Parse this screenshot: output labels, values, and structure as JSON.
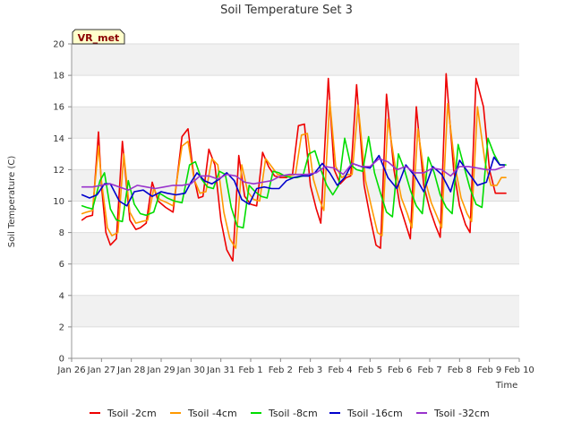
{
  "chart_data": {
    "type": "line",
    "title": "Soil Temperature Set 3",
    "xlabel": "Time",
    "ylabel": "Soil Temperature (C)",
    "badge": "VR_met",
    "ylim": [
      0,
      20
    ],
    "yticks": [
      0,
      2,
      4,
      6,
      8,
      10,
      12,
      14,
      16,
      18,
      20
    ],
    "xlim": [
      0,
      15
    ],
    "xticks": [
      {
        "pos": 0,
        "label": "Jan 26"
      },
      {
        "pos": 1,
        "label": "Jan 27"
      },
      {
        "pos": 2,
        "label": "Jan 28"
      },
      {
        "pos": 3,
        "label": "Jan 29"
      },
      {
        "pos": 4,
        "label": "Jan 30"
      },
      {
        "pos": 5,
        "label": "Jan 31"
      },
      {
        "pos": 6,
        "label": "Feb 1"
      },
      {
        "pos": 7,
        "label": "Feb 2"
      },
      {
        "pos": 8,
        "label": "Feb 3"
      },
      {
        "pos": 9,
        "label": "Feb 4"
      },
      {
        "pos": 10,
        "label": "Feb 5"
      },
      {
        "pos": 11,
        "label": "Feb 6"
      },
      {
        "pos": 12,
        "label": "Feb 7"
      },
      {
        "pos": 13,
        "label": "Feb 8"
      },
      {
        "pos": 14,
        "label": "Feb 9"
      },
      {
        "pos": 15,
        "label": "Feb 10"
      }
    ],
    "grid": "horizontal bands",
    "legend_position": "bottom",
    "series": [
      {
        "name": "Tsoil -2cm",
        "color": "#ee0000",
        "x": [
          0.35,
          0.5,
          0.7,
          0.9,
          1.0,
          1.15,
          1.3,
          1.5,
          1.7,
          1.95,
          2.15,
          2.3,
          2.5,
          2.7,
          2.9,
          3.15,
          3.4,
          3.7,
          3.9,
          4.1,
          4.25,
          4.4,
          4.6,
          4.8,
          5.0,
          5.2,
          5.4,
          5.6,
          5.8,
          6.0,
          6.2,
          6.4,
          6.6,
          6.8,
          7.0,
          7.2,
          7.4,
          7.6,
          7.8,
          8.0,
          8.2,
          8.35,
          8.6,
          8.8,
          9.0,
          9.2,
          9.35,
          9.55,
          9.8,
          10.0,
          10.2,
          10.35,
          10.55,
          10.8,
          11.0,
          11.2,
          11.35,
          11.55,
          11.8,
          12.0,
          12.2,
          12.35,
          12.55,
          12.8,
          13.0,
          13.2,
          13.35,
          13.55,
          13.8,
          14.0,
          14.2,
          14.35,
          14.55
        ],
        "y": [
          8.8,
          9.0,
          9.1,
          14.4,
          11.0,
          8.0,
          7.2,
          7.6,
          13.8,
          8.8,
          8.2,
          8.3,
          8.6,
          11.2,
          10.0,
          9.6,
          9.3,
          14.1,
          14.6,
          11.5,
          10.2,
          10.3,
          13.3,
          12.3,
          8.8,
          6.9,
          6.2,
          12.9,
          10.3,
          9.8,
          9.7,
          13.1,
          12.2,
          11.6,
          11.5,
          11.5,
          11.7,
          14.8,
          14.9,
          11.0,
          9.5,
          8.6,
          17.8,
          12.0,
          11.1,
          11.5,
          11.6,
          17.4,
          11.0,
          9.0,
          7.2,
          7.0,
          16.8,
          12.0,
          9.7,
          8.5,
          7.6,
          16.0,
          11.0,
          9.5,
          8.4,
          7.7,
          18.1,
          12.0,
          9.7,
          8.5,
          8.0,
          17.8,
          16.0,
          12.0,
          10.5,
          10.5,
          10.5
        ]
      },
      {
        "name": "Tsoil -4cm",
        "color": "#ff9900",
        "x": [
          0.35,
          0.5,
          0.7,
          0.9,
          1.0,
          1.2,
          1.35,
          1.55,
          1.75,
          1.95,
          2.15,
          2.35,
          2.55,
          2.75,
          2.95,
          3.2,
          3.4,
          3.7,
          3.9,
          4.1,
          4.3,
          4.5,
          4.7,
          4.9,
          5.1,
          5.3,
          5.5,
          5.7,
          5.9,
          6.1,
          6.3,
          6.5,
          6.7,
          6.9,
          7.1,
          7.3,
          7.5,
          7.7,
          7.9,
          8.1,
          8.3,
          8.45,
          8.65,
          8.85,
          9.05,
          9.25,
          9.4,
          9.6,
          9.85,
          10.05,
          10.25,
          10.4,
          10.6,
          10.85,
          11.05,
          11.25,
          11.4,
          11.6,
          11.85,
          12.05,
          12.25,
          12.4,
          12.6,
          12.85,
          13.05,
          13.25,
          13.4,
          13.6,
          13.85,
          14.05,
          14.25,
          14.4,
          14.55
        ],
        "y": [
          9.2,
          9.3,
          9.4,
          13.5,
          11.3,
          8.3,
          7.8,
          8.0,
          13.0,
          9.3,
          8.6,
          8.7,
          8.8,
          10.8,
          10.1,
          9.9,
          9.7,
          13.5,
          13.8,
          11.4,
          10.5,
          10.6,
          12.7,
          12.3,
          9.3,
          7.6,
          7.0,
          12.3,
          10.6,
          10.1,
          10.0,
          12.7,
          12.2,
          11.7,
          11.6,
          11.6,
          11.7,
          14.2,
          14.3,
          11.4,
          10.1,
          9.4,
          16.4,
          12.2,
          11.5,
          11.7,
          11.7,
          16.1,
          11.3,
          9.6,
          8.0,
          7.8,
          15.2,
          12.1,
          10.2,
          9.2,
          8.3,
          14.6,
          11.3,
          9.9,
          9.0,
          8.3,
          16.2,
          12.2,
          10.2,
          9.2,
          8.7,
          16.0,
          12.5,
          11.0,
          11.0,
          11.5,
          11.5
        ]
      },
      {
        "name": "Tsoil -8cm",
        "color": "#00dd00",
        "x": [
          0.35,
          0.5,
          0.7,
          0.95,
          1.1,
          1.3,
          1.5,
          1.7,
          1.9,
          2.1,
          2.3,
          2.5,
          2.75,
          2.95,
          3.2,
          3.45,
          3.7,
          3.95,
          4.15,
          4.35,
          4.55,
          4.75,
          4.95,
          5.15,
          5.35,
          5.55,
          5.75,
          5.95,
          6.15,
          6.35,
          6.55,
          6.75,
          6.95,
          7.15,
          7.35,
          7.55,
          7.75,
          7.95,
          8.15,
          8.35,
          8.55,
          8.75,
          8.95,
          9.15,
          9.35,
          9.55,
          9.75,
          9.95,
          10.15,
          10.35,
          10.55,
          10.75,
          10.95,
          11.15,
          11.35,
          11.55,
          11.75,
          11.95,
          12.15,
          12.35,
          12.55,
          12.75,
          12.95,
          13.15,
          13.35,
          13.55,
          13.75,
          13.95,
          14.15,
          14.35,
          14.55
        ],
        "y": [
          9.7,
          9.6,
          9.5,
          11.3,
          11.8,
          9.5,
          8.8,
          8.7,
          11.3,
          9.8,
          9.2,
          9.1,
          9.3,
          10.5,
          10.2,
          10.0,
          9.9,
          12.3,
          12.5,
          11.4,
          10.9,
          10.8,
          11.9,
          11.7,
          9.6,
          8.4,
          8.3,
          11.0,
          10.6,
          10.3,
          10.2,
          11.9,
          11.8,
          11.6,
          11.5,
          11.5,
          11.6,
          13.0,
          13.2,
          12.0,
          11.0,
          10.4,
          11.0,
          14.0,
          12.3,
          12.0,
          11.9,
          14.1,
          11.8,
          10.5,
          9.3,
          9.0,
          13.0,
          12.0,
          10.7,
          9.7,
          9.2,
          12.8,
          11.8,
          10.4,
          9.6,
          9.2,
          13.6,
          12.2,
          10.8,
          9.8,
          9.6,
          14.0,
          13.0,
          12.3,
          12.3
        ]
      },
      {
        "name": "Tsoil -16cm",
        "color": "#0000cc",
        "x": [
          0.35,
          0.6,
          0.85,
          1.1,
          1.3,
          1.6,
          1.85,
          2.1,
          2.4,
          2.7,
          3.0,
          3.2,
          3.5,
          3.8,
          4.0,
          4.2,
          4.45,
          4.7,
          4.95,
          5.2,
          5.45,
          5.7,
          5.95,
          6.2,
          6.45,
          6.7,
          6.95,
          7.2,
          7.45,
          7.7,
          7.95,
          8.15,
          8.4,
          8.65,
          8.9,
          9.15,
          9.4,
          9.7,
          10.0,
          10.3,
          10.6,
          10.9,
          11.2,
          11.5,
          11.8,
          12.1,
          12.4,
          12.7,
          13.0,
          13.3,
          13.6,
          13.9,
          14.15,
          14.35,
          14.5
        ],
        "y": [
          10.4,
          10.2,
          10.4,
          11.1,
          11.1,
          10.0,
          9.7,
          10.6,
          10.7,
          10.3,
          10.6,
          10.5,
          10.4,
          10.5,
          11.2,
          11.8,
          11.3,
          11.1,
          11.4,
          11.8,
          11.3,
          10.1,
          9.8,
          10.8,
          10.9,
          10.8,
          10.8,
          11.3,
          11.5,
          11.6,
          11.6,
          11.8,
          12.4,
          11.8,
          11.0,
          11.5,
          12.4,
          12.2,
          12.1,
          12.9,
          11.5,
          10.8,
          12.3,
          11.6,
          10.6,
          12.2,
          11.7,
          10.6,
          12.6,
          11.8,
          11.0,
          11.2,
          12.8,
          12.3,
          12.3
        ]
      },
      {
        "name": "Tsoil -32cm",
        "color": "#9933cc",
        "x": [
          0.35,
          0.7,
          1.0,
          1.3,
          1.6,
          1.9,
          2.2,
          2.5,
          2.8,
          3.1,
          3.4,
          3.7,
          4.0,
          4.3,
          4.6,
          4.9,
          5.2,
          5.5,
          5.8,
          6.1,
          6.4,
          6.7,
          7.0,
          7.3,
          7.6,
          7.9,
          8.2,
          8.5,
          8.8,
          9.1,
          9.4,
          9.7,
          10.0,
          10.3,
          10.6,
          10.9,
          11.2,
          11.5,
          11.8,
          12.1,
          12.4,
          12.7,
          13.0,
          13.3,
          13.6,
          13.9,
          14.2,
          14.5
        ],
        "y": [
          10.9,
          10.9,
          11.0,
          11.1,
          10.9,
          10.7,
          11.0,
          10.9,
          10.8,
          10.9,
          11.0,
          11.0,
          11.1,
          11.6,
          11.6,
          11.4,
          11.7,
          11.6,
          11.2,
          11.1,
          11.2,
          11.3,
          11.6,
          11.7,
          11.7,
          11.7,
          11.8,
          12.2,
          12.1,
          11.7,
          12.4,
          12.2,
          12.2,
          12.7,
          12.5,
          12.0,
          12.2,
          11.8,
          11.8,
          12.1,
          12.0,
          11.6,
          12.2,
          12.2,
          12.1,
          12.0,
          12.0,
          12.2
        ]
      }
    ]
  }
}
